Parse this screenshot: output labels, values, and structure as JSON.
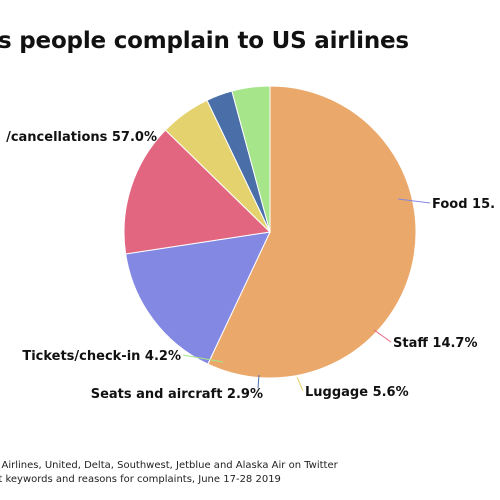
{
  "chart_data": {
    "type": "pie",
    "title": "s people complain to US airlines",
    "slices": [
      {
        "label": "/cancellations 57.0%",
        "value": 57.0,
        "color": "#eba86b"
      },
      {
        "label": "Food 15.",
        "value": 15.6,
        "color": "#8389e3"
      },
      {
        "label": "Staff 14.7%",
        "value": 14.7,
        "color": "#e2667f"
      },
      {
        "label": "Luggage 5.6%",
        "value": 5.6,
        "color": "#e4d26e"
      },
      {
        "label": "Seats and aircraft 2.9%",
        "value": 2.9,
        "color": "#4a6fa8"
      },
      {
        "label": "Tickets/check-in 4.2%",
        "value": 4.2,
        "color": "#a6e58a"
      }
    ]
  },
  "footnotes": [
    "n Airlines, United, Delta, Southwest, Jetblue and Alaska Air on Twitter",
    "nt keywords and reasons for complaints, June 17-28 2019"
  ]
}
